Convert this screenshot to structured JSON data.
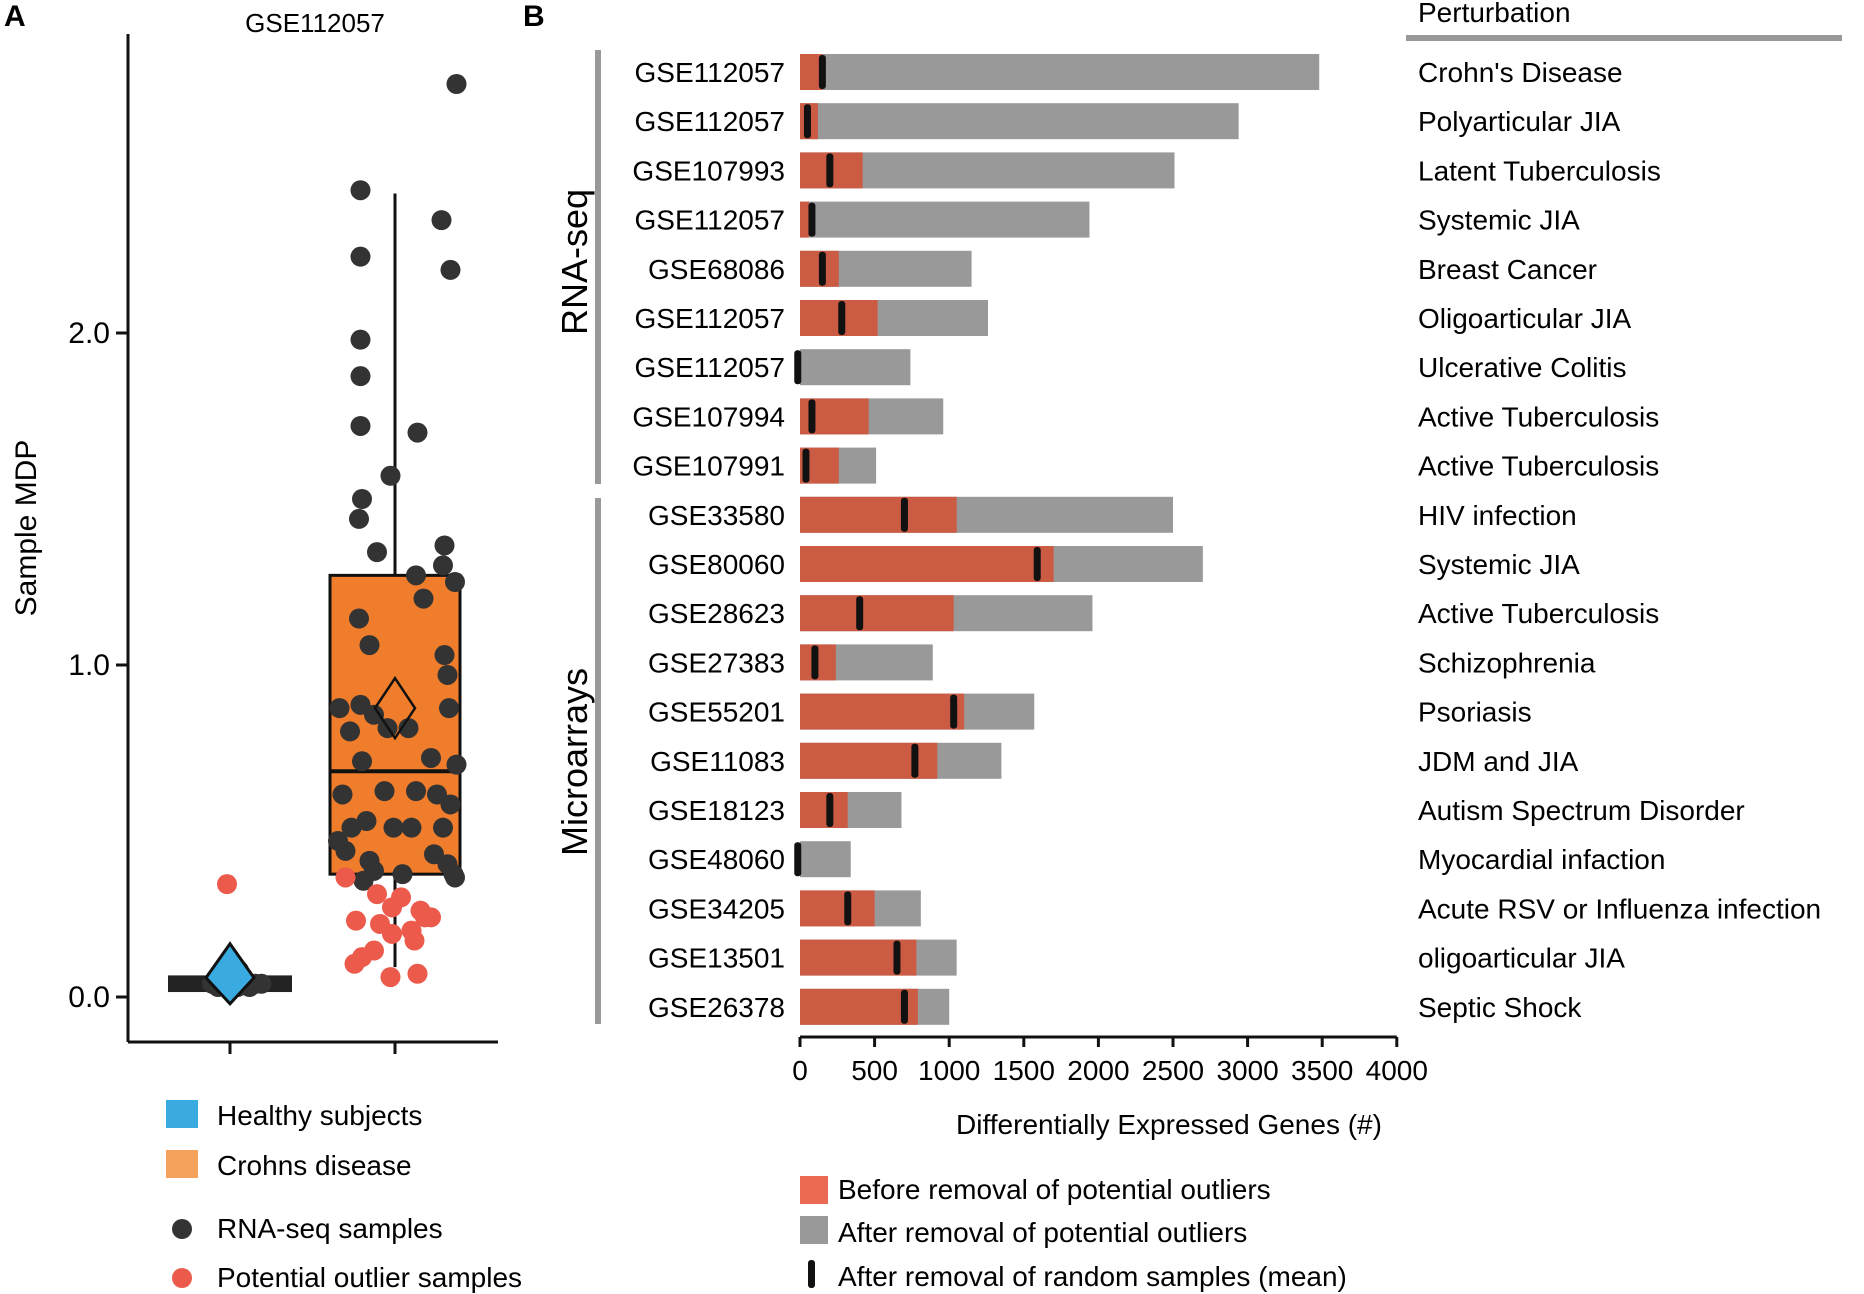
{
  "panel_a": {
    "letter": "A",
    "legend": {
      "healthy": "Healthy subjects",
      "crohns": "Crohns disease",
      "rnaseq": "RNA-seq samples",
      "outlier": "Potential outlier samples"
    }
  },
  "panel_b": {
    "letter": "B",
    "perturbation_header": "Perturbation",
    "group_rnaseq": "RNA-seq",
    "group_microarrays": "Microarrays",
    "legend": {
      "before": "Before removal of potential outliers",
      "after": "After removal of potential outliers",
      "random": "After removal of random samples (mean)"
    }
  },
  "chart_data": [
    {
      "type": "box",
      "title": "GSE112057",
      "ylabel": "Sample MDP",
      "ylim": [
        -0.12,
        2.95
      ],
      "yticks": [
        0.0,
        1.0,
        2.0
      ],
      "ytick_labels": [
        "0.0",
        "1.0",
        "2.0"
      ],
      "groups": [
        {
          "name": "Healthy subjects",
          "color": "#3aabe0",
          "box": {
            "q1": 0.03,
            "median": 0.04,
            "q3": 0.05,
            "whisker_low": 0.02,
            "whisker_high": 0.06
          },
          "mean": 0.07,
          "rnaseq_points": [
            [
              -0.12,
              0.04
            ],
            [
              -0.08,
              0.03
            ],
            [
              -0.03,
              0.05
            ],
            [
              0.02,
              0.04
            ],
            [
              0.05,
              0.03
            ],
            [
              0.09,
              0.05
            ],
            [
              0.13,
              0.03
            ],
            [
              0.17,
              0.04
            ],
            [
              0.21,
              0.04
            ],
            [
              0.01,
              0.09
            ],
            [
              0.06,
              0.08
            ]
          ],
          "outlier_points": [
            [
              -0.02,
              0.34
            ]
          ]
        },
        {
          "name": "Crohns disease",
          "color": "#ef7d2c",
          "box": {
            "q1": 0.37,
            "median": 0.68,
            "q3": 1.27,
            "whisker_low": 0.09,
            "whisker_high": 2.42
          },
          "mean": 0.87,
          "rnaseq_points": [
            [
              0.41,
              2.75
            ],
            [
              -0.23,
              2.43
            ],
            [
              0.31,
              2.34
            ],
            [
              -0.23,
              2.23
            ],
            [
              0.37,
              2.19
            ],
            [
              -0.23,
              1.98
            ],
            [
              -0.23,
              1.87
            ],
            [
              -0.23,
              1.72
            ],
            [
              0.15,
              1.7
            ],
            [
              -0.03,
              1.57
            ],
            [
              -0.22,
              1.5
            ],
            [
              -0.24,
              1.44
            ],
            [
              -0.12,
              1.34
            ],
            [
              0.33,
              1.36
            ],
            [
              0.32,
              1.3
            ],
            [
              0.14,
              1.27
            ],
            [
              0.4,
              1.25
            ],
            [
              0.19,
              1.2
            ],
            [
              -0.24,
              1.14
            ],
            [
              -0.17,
              1.06
            ],
            [
              0.33,
              1.03
            ],
            [
              0.35,
              0.97
            ],
            [
              -0.37,
              0.87
            ],
            [
              -0.23,
              0.88
            ],
            [
              -0.14,
              0.85
            ],
            [
              -0.05,
              0.81
            ],
            [
              0.09,
              0.81
            ],
            [
              0.36,
              0.87
            ],
            [
              -0.3,
              0.8
            ],
            [
              -0.22,
              0.71
            ],
            [
              0.24,
              0.72
            ],
            [
              0.41,
              0.7
            ],
            [
              -0.35,
              0.61
            ],
            [
              -0.07,
              0.62
            ],
            [
              0.14,
              0.62
            ],
            [
              0.28,
              0.61
            ],
            [
              0.37,
              0.58
            ],
            [
              -0.29,
              0.51
            ],
            [
              -0.19,
              0.53
            ],
            [
              -0.01,
              0.51
            ],
            [
              0.11,
              0.51
            ],
            [
              0.32,
              0.51
            ],
            [
              -0.38,
              0.47
            ],
            [
              -0.33,
              0.44
            ],
            [
              0.26,
              0.43
            ],
            [
              -0.17,
              0.41
            ],
            [
              0.35,
              0.4
            ],
            [
              -0.14,
              0.38
            ],
            [
              0.05,
              0.37
            ],
            [
              0.39,
              0.37
            ],
            [
              -0.21,
              0.35
            ],
            [
              0.4,
              0.36
            ]
          ],
          "outlier_points": [
            [
              -0.33,
              0.36
            ],
            [
              -0.12,
              0.31
            ],
            [
              0.04,
              0.3
            ],
            [
              0.17,
              0.26
            ],
            [
              -0.02,
              0.27
            ],
            [
              0.2,
              0.24
            ],
            [
              0.24,
              0.24
            ],
            [
              -0.26,
              0.23
            ],
            [
              -0.1,
              0.22
            ],
            [
              -0.02,
              0.19
            ],
            [
              0.11,
              0.2
            ],
            [
              0.13,
              0.17
            ],
            [
              -0.14,
              0.14
            ],
            [
              -0.27,
              0.1
            ],
            [
              -0.22,
              0.12
            ],
            [
              0.15,
              0.07
            ],
            [
              -0.03,
              0.06
            ]
          ]
        }
      ]
    },
    {
      "type": "bar",
      "orientation": "horizontal",
      "xlabel": "Differentially Expressed Genes (#)",
      "xlim": [
        0,
        4000
      ],
      "xticks": [
        0,
        500,
        1000,
        1500,
        2000,
        2500,
        3000,
        3500,
        4000
      ],
      "series_names": [
        "Before removal of potential outliers",
        "After removal of potential outliers",
        "After removal of random samples (mean)"
      ],
      "colors": {
        "before": "#cc5b44",
        "after": "#999999",
        "random": "#111111"
      },
      "rows": [
        {
          "dataset": "GSE112057",
          "perturbation": "Crohn's Disease",
          "group": "RNA-seq",
          "before": 150,
          "after": 3480,
          "random": 150
        },
        {
          "dataset": "GSE112057",
          "perturbation": "Polyarticular JIA",
          "group": "RNA-seq",
          "before": 120,
          "after": 2940,
          "random": 50
        },
        {
          "dataset": "GSE107993",
          "perturbation": "Latent Tuberculosis",
          "group": "RNA-seq",
          "before": 420,
          "after": 2510,
          "random": 200
        },
        {
          "dataset": "GSE112057",
          "perturbation": "Systemic JIA",
          "group": "RNA-seq",
          "before": 60,
          "after": 1940,
          "random": 80
        },
        {
          "dataset": "GSE68086",
          "perturbation": "Breast Cancer",
          "group": "RNA-seq",
          "before": 260,
          "after": 1150,
          "random": 150
        },
        {
          "dataset": "GSE112057",
          "perturbation": "Oligoarticular JIA",
          "group": "RNA-seq",
          "before": 520,
          "after": 1260,
          "random": 280
        },
        {
          "dataset": "GSE112057",
          "perturbation": "Ulcerative Colitis",
          "group": "RNA-seq",
          "before": 0,
          "after": 740,
          "random": -15
        },
        {
          "dataset": "GSE107994",
          "perturbation": "Active Tuberculosis",
          "group": "RNA-seq",
          "before": 460,
          "after": 960,
          "random": 80
        },
        {
          "dataset": "GSE107991",
          "perturbation": "Active Tuberculosis",
          "group": "RNA-seq",
          "before": 260,
          "after": 510,
          "random": 40
        },
        {
          "dataset": "GSE33580",
          "perturbation": "HIV infection",
          "group": "Microarrays",
          "before": 1050,
          "after": 2500,
          "random": 700
        },
        {
          "dataset": "GSE80060",
          "perturbation": "Systemic JIA",
          "group": "Microarrays",
          "before": 1700,
          "after": 2700,
          "random": 1590
        },
        {
          "dataset": "GSE28623",
          "perturbation": "Active Tuberculosis",
          "group": "Microarrays",
          "before": 1030,
          "after": 1960,
          "random": 400
        },
        {
          "dataset": "GSE27383",
          "perturbation": "Schizophrenia",
          "group": "Microarrays",
          "before": 240,
          "after": 890,
          "random": 100
        },
        {
          "dataset": "GSE55201",
          "perturbation": "Psoriasis",
          "group": "Microarrays",
          "before": 1100,
          "after": 1570,
          "random": 1030
        },
        {
          "dataset": "GSE11083",
          "perturbation": "JDM and JIA",
          "group": "Microarrays",
          "before": 920,
          "after": 1350,
          "random": 770
        },
        {
          "dataset": "GSE18123",
          "perturbation": "Autism Spectrum Disorder",
          "group": "Microarrays",
          "before": 320,
          "after": 680,
          "random": 200
        },
        {
          "dataset": "GSE48060",
          "perturbation": "Myocardial infaction",
          "group": "Microarrays",
          "before": 0,
          "after": 340,
          "random": -15
        },
        {
          "dataset": "GSE34205",
          "perturbation": "Acute RSV or Influenza infection",
          "group": "Microarrays",
          "before": 500,
          "after": 810,
          "random": 320
        },
        {
          "dataset": "GSE13501",
          "perturbation": "oligoarticular JIA",
          "group": "Microarrays",
          "before": 780,
          "after": 1050,
          "random": 650
        },
        {
          "dataset": "GSE26378",
          "perturbation": "Septic Shock",
          "group": "Microarrays",
          "before": 790,
          "after": 1000,
          "random": 700
        }
      ]
    }
  ]
}
